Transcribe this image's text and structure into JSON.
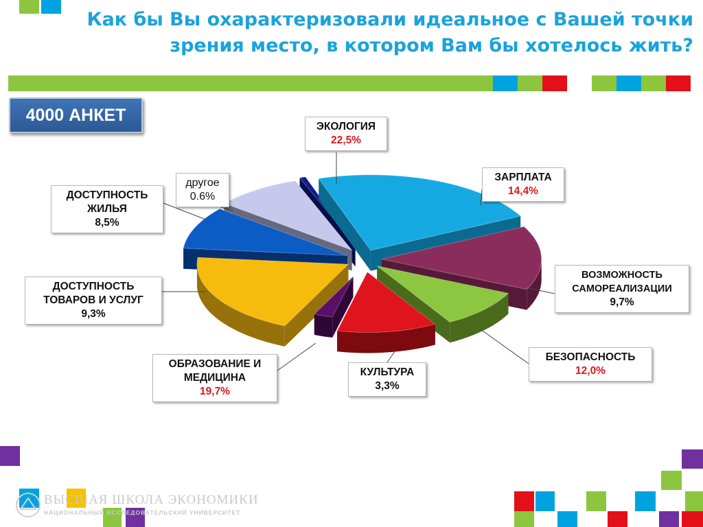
{
  "title": "Как бы Вы охарактеризовали идеальное с Вашей точки зрения место, в котором Вам бы хотелось жить?",
  "badge": "4000 АНКЕТ",
  "logo": {
    "line1": "ВЫСШАЯ ШКОЛА ЭКОНОМИКИ",
    "line2": "НАЦИОНАЛЬНЫЙ ИССЛЕДОВАТЕЛЬСКИЙ УНИВЕРСИТЕТ"
  },
  "colors": {
    "title": "#1aa3dc",
    "green": "#8cc63f",
    "blue": "#00a3e0",
    "red": "#e3101a",
    "purple": "#7030a0",
    "yellow": "#f5c100"
  },
  "chart_data": {
    "type": "pie",
    "categories": [
      "ЭКОЛОГИЯ",
      "ЗАРПЛАТА",
      "ВОЗМОЖНОСТЬ САМОРЕАЛИЗАЦИИ",
      "БЕЗОПАСНОСТЬ",
      "КУЛЬТУРА",
      "ОБРАЗОВАНИЕ И МЕДИЦИНА",
      "ДОСТУПНОСТЬ ТОВАРОВ И УСЛУГ",
      "ДОСТУПНОСТЬ ЖИЛЬЯ",
      "другое"
    ],
    "values": [
      22.5,
      14.4,
      9.7,
      12.0,
      3.3,
      19.7,
      9.3,
      8.5,
      0.6
    ],
    "value_labels": [
      "22,5%",
      "14,4%",
      "9,7%",
      "12,0%",
      "3,3%",
      "19,7%",
      "9,3%",
      "8,5%",
      "0.6%"
    ],
    "colors": [
      "#16a9e1",
      "#8b2d5c",
      "#8dc641",
      "#e0141c",
      "#5a1066",
      "#f6bb0c",
      "#0c5cc6",
      "#c7c9ec",
      "#0e1e8a"
    ],
    "dark_colors": [
      "#0b6a90",
      "#561a38",
      "#4a6a1c",
      "#7c0a0f",
      "#2e0736",
      "#97720a",
      "#062f70",
      "#66697e",
      "#060e4a"
    ],
    "label_styles": [
      "red",
      "red",
      "dark",
      "red",
      "dark",
      "red",
      "dark",
      "dark",
      "dark"
    ],
    "legend": "none"
  }
}
